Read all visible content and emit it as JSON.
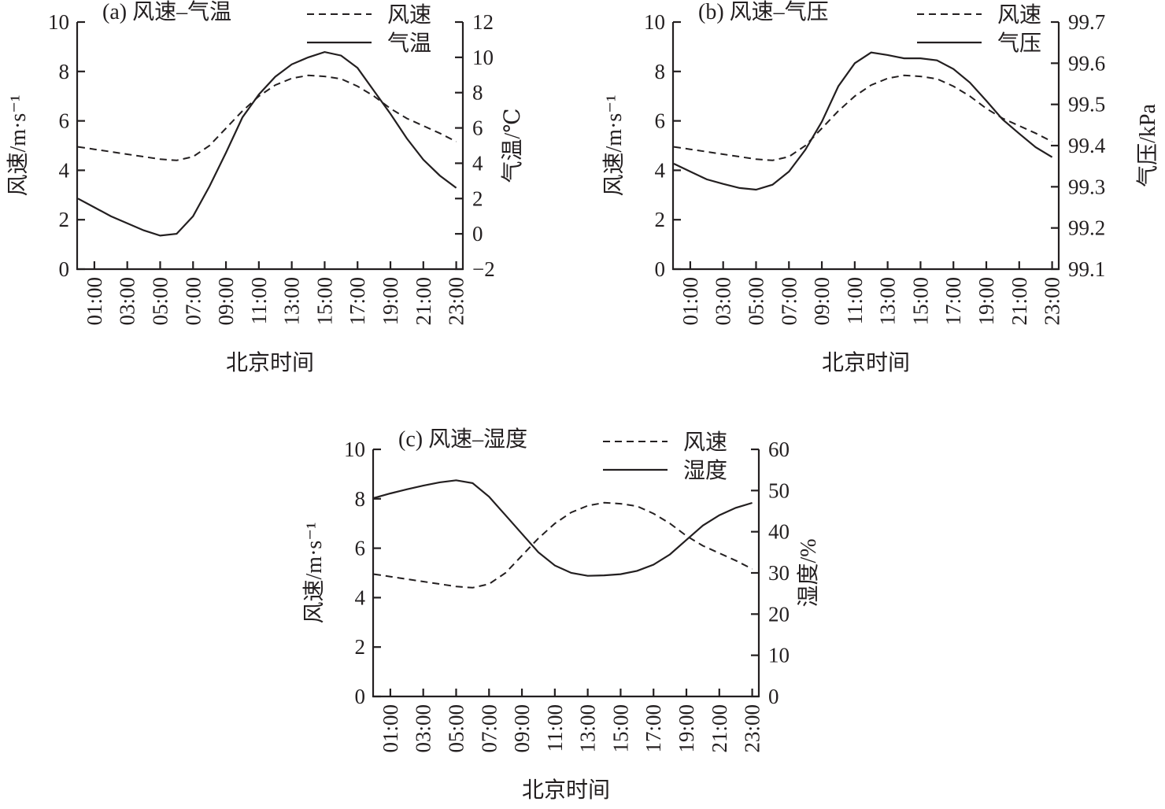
{
  "chart_data": [
    {
      "type": "line",
      "title": "(a) 风速–气温",
      "xlabel": "北京时间",
      "ylabel": "风速/m·s⁻¹",
      "ylabel_right": "气温/℃",
      "ylim": [
        0,
        10
      ],
      "ylim_right": [
        -2,
        12
      ],
      "yticks": [
        "0",
        "2",
        "4",
        "6",
        "8",
        "10"
      ],
      "yticks_right": [
        "−2",
        "0",
        "2",
        "4",
        "6",
        "8",
        "10",
        "12"
      ],
      "x": [
        0,
        1,
        2,
        3,
        4,
        5,
        6,
        7,
        8,
        9,
        10,
        11,
        12,
        13,
        14,
        15,
        16,
        17,
        18,
        19,
        20,
        21,
        22,
        23
      ],
      "xtick_labels": [
        "01:00",
        "03:00",
        "05:00",
        "07:00",
        "09:00",
        "11:00",
        "13:00",
        "15:00",
        "17:00",
        "19:00",
        "21:00",
        "23:00"
      ],
      "legend": [
        "风速",
        "气温"
      ],
      "legend_position": "top-right",
      "series": [
        {
          "name": "风速",
          "axis": "left",
          "style": "dashed",
          "values": [
            4.95,
            4.85,
            4.75,
            4.65,
            4.55,
            4.45,
            4.4,
            4.55,
            5.0,
            5.7,
            6.4,
            7.0,
            7.45,
            7.72,
            7.84,
            7.8,
            7.7,
            7.4,
            7.0,
            6.5,
            6.1,
            5.8,
            5.5,
            5.16
          ]
        },
        {
          "name": "气温",
          "axis": "right",
          "style": "solid",
          "values": [
            2.0,
            1.5,
            1.0,
            0.6,
            0.2,
            -0.1,
            0.0,
            1.0,
            2.7,
            4.6,
            6.6,
            7.9,
            8.9,
            9.6,
            10.0,
            10.3,
            10.1,
            9.4,
            8.1,
            6.8,
            5.4,
            4.2,
            3.3,
            2.6
          ]
        }
      ]
    },
    {
      "type": "line",
      "title": "(b) 风速–气压",
      "xlabel": "北京时间",
      "ylabel": "风速/m·s⁻¹",
      "ylabel_right": "气压/kPa",
      "ylim": [
        0,
        10
      ],
      "ylim_right": [
        99.1,
        99.7
      ],
      "yticks": [
        "0",
        "2",
        "4",
        "6",
        "8",
        "10"
      ],
      "yticks_right": [
        "99.1",
        "99.2",
        "99.3",
        "99.4",
        "99.5",
        "99.6",
        "99.7"
      ],
      "x": [
        0,
        1,
        2,
        3,
        4,
        5,
        6,
        7,
        8,
        9,
        10,
        11,
        12,
        13,
        14,
        15,
        16,
        17,
        18,
        19,
        20,
        21,
        22,
        23
      ],
      "xtick_labels": [
        "01:00",
        "03:00",
        "05:00",
        "07:00",
        "09:00",
        "11:00",
        "13:00",
        "15:00",
        "17:00",
        "19:00",
        "21:00",
        "23:00"
      ],
      "legend": [
        "风速",
        "气压"
      ],
      "legend_position": "top-right",
      "series": [
        {
          "name": "风速",
          "axis": "left",
          "style": "dashed",
          "values": [
            4.95,
            4.85,
            4.75,
            4.65,
            4.55,
            4.45,
            4.4,
            4.55,
            5.0,
            5.7,
            6.4,
            7.0,
            7.45,
            7.72,
            7.84,
            7.8,
            7.7,
            7.4,
            7.0,
            6.5,
            6.1,
            5.8,
            5.5,
            5.16
          ]
        },
        {
          "name": "气压",
          "axis": "right",
          "style": "solid",
          "values": [
            99.356,
            99.337,
            99.318,
            99.307,
            99.297,
            99.293,
            99.305,
            99.337,
            99.39,
            99.458,
            99.544,
            99.6,
            99.626,
            99.62,
            99.612,
            99.612,
            99.607,
            99.586,
            99.553,
            99.509,
            99.463,
            99.429,
            99.396,
            99.372
          ]
        }
      ]
    },
    {
      "type": "line",
      "title": "(c) 风速–湿度",
      "xlabel": "北京时间",
      "ylabel": "风速/m·s⁻¹",
      "ylabel_right": "湿度/%",
      "ylim": [
        0,
        10
      ],
      "ylim_right": [
        0,
        60
      ],
      "yticks": [
        "0",
        "2",
        "4",
        "6",
        "8",
        "10"
      ],
      "yticks_right": [
        "0",
        "10",
        "20",
        "30",
        "40",
        "50",
        "60"
      ],
      "x": [
        0,
        1,
        2,
        3,
        4,
        5,
        6,
        7,
        8,
        9,
        10,
        11,
        12,
        13,
        14,
        15,
        16,
        17,
        18,
        19,
        20,
        21,
        22,
        23
      ],
      "xtick_labels": [
        "01:00",
        "03:00",
        "05:00",
        "07:00",
        "09:00",
        "11:00",
        "13:00",
        "15:00",
        "17:00",
        "19:00",
        "21:00",
        "23:00"
      ],
      "legend": [
        "风速",
        "湿度"
      ],
      "legend_position": "top-right",
      "series": [
        {
          "name": "风速",
          "axis": "left",
          "style": "dashed",
          "values": [
            4.95,
            4.85,
            4.75,
            4.65,
            4.55,
            4.45,
            4.4,
            4.55,
            5.0,
            5.7,
            6.4,
            7.0,
            7.45,
            7.72,
            7.84,
            7.8,
            7.7,
            7.4,
            7.0,
            6.5,
            6.1,
            5.8,
            5.5,
            5.16
          ]
        },
        {
          "name": "湿度",
          "axis": "right",
          "style": "solid",
          "values": [
            48.2,
            49.3,
            50.3,
            51.2,
            52.0,
            52.5,
            51.8,
            48.5,
            44.0,
            39.5,
            35.0,
            31.8,
            30.0,
            29.3,
            29.4,
            29.7,
            30.5,
            32.0,
            34.5,
            38.0,
            41.5,
            44.0,
            45.8,
            47.0
          ]
        }
      ]
    }
  ]
}
